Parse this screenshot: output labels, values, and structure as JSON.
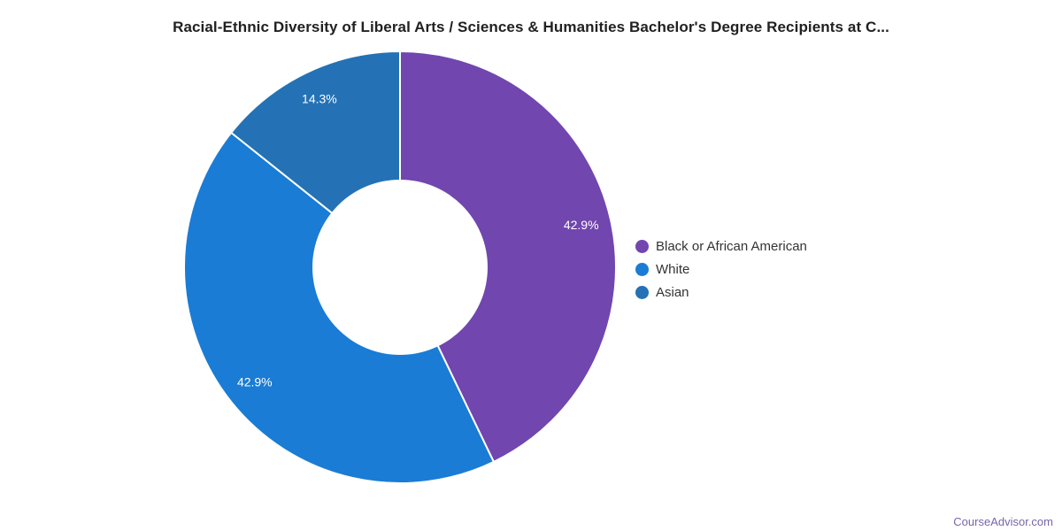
{
  "title": "Racial-Ethnic Diversity of Liberal Arts / Sciences & Humanities Bachelor's Degree Recipients at C...",
  "footer": {
    "text": "CourseAdvisor.com",
    "color": "#7A64AD"
  },
  "chart_data": {
    "type": "pie",
    "donut": true,
    "title": "Racial-Ethnic Diversity of Liberal Arts / Sciences & Humanities Bachelor's Degree Recipients at C...",
    "categories": [
      "Black or African American",
      "White",
      "Asian"
    ],
    "values": [
      42.9,
      42.9,
      14.3
    ],
    "slice_labels": [
      "42.9%",
      "42.9%",
      "14.3%"
    ],
    "colors": [
      "#7146AF",
      "#1A7CD5",
      "#2472B5"
    ],
    "slice_label_color": "#ffffff",
    "divider_color": "#ffffff",
    "legend_position": "right",
    "start_angle_deg": 0,
    "direction": "clockwise"
  }
}
